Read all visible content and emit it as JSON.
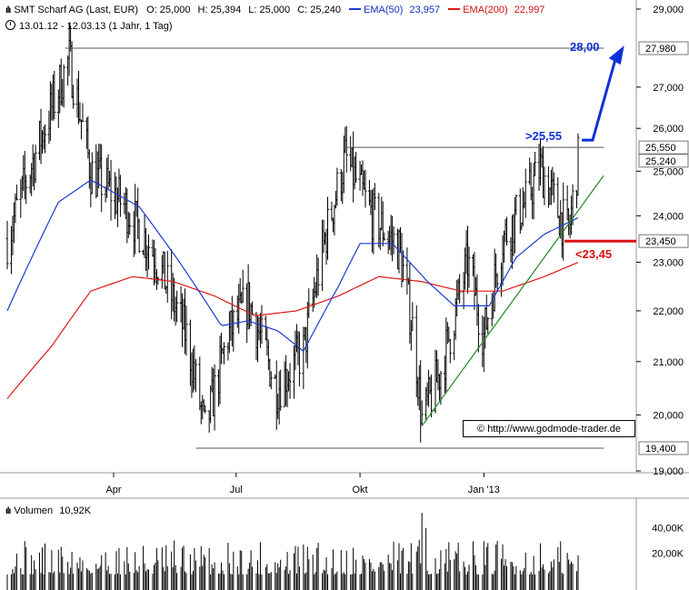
{
  "header": {
    "title": "SMT Scharf AG (Last, EUR)",
    "open": "O: 25,000",
    "high": "H: 25,394",
    "low": "L: 25,000",
    "close": "C: 25,240",
    "ema50_label": "EMA(50)",
    "ema50_value": "23,957",
    "ema200_label": "EMA(200)",
    "ema200_value": "22,997",
    "period": "13.01.12 - 12.03.13 (1 Jahr, 1 Tag)"
  },
  "copyright": "© http://www.godmode-trader.de",
  "volume": {
    "label": "Volumen",
    "value": "10,92K",
    "ticks": [
      "40,00K",
      "20,00K"
    ]
  },
  "colors": {
    "price": "#000000",
    "ema50": "#1a3ad8",
    "ema200": "#e01818",
    "trendline": "#1f8a1f",
    "arrow_target": "#1030d8",
    "support_line": "#d81010",
    "level_line": "#555555"
  },
  "chart_data": {
    "type": "ohlc",
    "y_axis": {
      "ylim": [
        19000,
        29200
      ],
      "ticks": [
        "29,000",
        "27,000",
        "26,000",
        "25,000",
        "24,000",
        "23,000",
        "22,000",
        "21,000",
        "20,000",
        "19,000"
      ],
      "tick_values": [
        29000,
        27000,
        26000,
        25000,
        24000,
        23000,
        22000,
        21000,
        20000,
        19000
      ],
      "scale": "log"
    },
    "x_axis": {
      "range": [
        "13.01.12",
        "12.03.13"
      ],
      "tick_labels": [
        "Apr",
        "Jul",
        "Okt",
        "Jan '13"
      ],
      "tick_dates": [
        "2012-04-01",
        "2012-07-01",
        "2012-10-01",
        "2013-01-01"
      ]
    },
    "levels": [
      {
        "value": 27980,
        "label": "27,980"
      },
      {
        "value": 25550,
        "label": "25,550"
      },
      {
        "value": 25240,
        "label": "25,240"
      },
      {
        "value": 23450,
        "label": "23,450"
      },
      {
        "value": 19400,
        "label": "19,400"
      }
    ],
    "annotations": [
      {
        "text": "28,00",
        "color": "#1030d8"
      },
      {
        "text": ">25,55",
        "color": "#1030d8"
      },
      {
        "text": "<23,45",
        "color": "#d81010"
      }
    ],
    "close_key_points": [
      {
        "date": "2012-01-13",
        "value": 23500
      },
      {
        "date": "2012-02-15",
        "value": 26500
      },
      {
        "date": "2012-02-28",
        "value": 27700
      },
      {
        "date": "2012-03-15",
        "value": 25000
      },
      {
        "date": "2012-04-10",
        "value": 24200
      },
      {
        "date": "2012-05-01",
        "value": 23200
      },
      {
        "date": "2012-05-25",
        "value": 21500
      },
      {
        "date": "2012-06-08",
        "value": 19700
      },
      {
        "date": "2012-06-25",
        "value": 21500
      },
      {
        "date": "2012-07-10",
        "value": 22200
      },
      {
        "date": "2012-07-31",
        "value": 20500
      },
      {
        "date": "2012-08-20",
        "value": 21200
      },
      {
        "date": "2012-09-05",
        "value": 23500
      },
      {
        "date": "2012-09-20",
        "value": 25300
      },
      {
        "date": "2012-10-10",
        "value": 24000
      },
      {
        "date": "2012-10-30",
        "value": 23300
      },
      {
        "date": "2012-11-10",
        "value": 21500
      },
      {
        "date": "2012-11-16",
        "value": 19900
      },
      {
        "date": "2012-12-01",
        "value": 20900
      },
      {
        "date": "2012-12-20",
        "value": 23000
      },
      {
        "date": "2013-01-01",
        "value": 21500
      },
      {
        "date": "2013-01-15",
        "value": 23500
      },
      {
        "date": "2013-02-01",
        "value": 24300
      },
      {
        "date": "2013-02-12",
        "value": 25100
      },
      {
        "date": "2013-02-25",
        "value": 24100
      },
      {
        "date": "2013-03-05",
        "value": 23600
      },
      {
        "date": "2013-03-12",
        "value": 25240
      }
    ],
    "ema50_key_points": [
      {
        "date": "2012-01-13",
        "value": 22000
      },
      {
        "date": "2012-02-20",
        "value": 24300
      },
      {
        "date": "2012-03-15",
        "value": 24800
      },
      {
        "date": "2012-04-20",
        "value": 24200
      },
      {
        "date": "2012-05-20",
        "value": 23000
      },
      {
        "date": "2012-06-20",
        "value": 21700
      },
      {
        "date": "2012-07-10",
        "value": 21800
      },
      {
        "date": "2012-08-01",
        "value": 21600
      },
      {
        "date": "2012-08-20",
        "value": 21200
      },
      {
        "date": "2012-09-15",
        "value": 22500
      },
      {
        "date": "2012-10-01",
        "value": 23400
      },
      {
        "date": "2012-10-25",
        "value": 23400
      },
      {
        "date": "2012-11-20",
        "value": 22600
      },
      {
        "date": "2012-12-10",
        "value": 22100
      },
      {
        "date": "2013-01-05",
        "value": 22100
      },
      {
        "date": "2013-01-25",
        "value": 23100
      },
      {
        "date": "2013-02-15",
        "value": 23600
      },
      {
        "date": "2013-03-12",
        "value": 23957
      }
    ],
    "ema200_key_points": [
      {
        "date": "2012-01-13",
        "value": 20300
      },
      {
        "date": "2012-02-15",
        "value": 21300
      },
      {
        "date": "2012-03-15",
        "value": 22400
      },
      {
        "date": "2012-04-15",
        "value": 22700
      },
      {
        "date": "2012-05-15",
        "value": 22600
      },
      {
        "date": "2012-06-15",
        "value": 22300
      },
      {
        "date": "2012-07-15",
        "value": 21900
      },
      {
        "date": "2012-08-15",
        "value": 22000
      },
      {
        "date": "2012-09-15",
        "value": 22300
      },
      {
        "date": "2012-10-15",
        "value": 22700
      },
      {
        "date": "2012-11-15",
        "value": 22600
      },
      {
        "date": "2012-12-15",
        "value": 22400
      },
      {
        "date": "2013-01-15",
        "value": 22400
      },
      {
        "date": "2013-02-15",
        "value": 22700
      },
      {
        "date": "2013-03-12",
        "value": 22997
      }
    ],
    "trendline": [
      {
        "date": "2012-11-16",
        "value": 19800
      },
      {
        "date": "2013-03-31",
        "value": 24900
      }
    ],
    "volume_ylim": [
      0,
      55000
    ]
  }
}
